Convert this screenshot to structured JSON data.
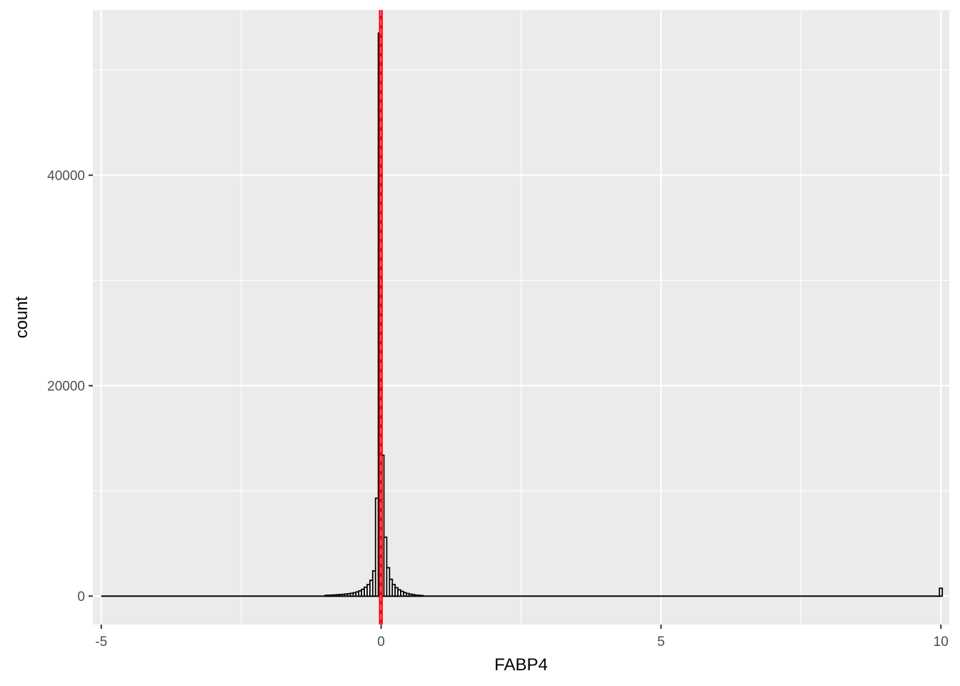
{
  "chart_data": {
    "type": "bar",
    "title": "",
    "xlabel": "FABP4",
    "ylabel": "count",
    "xlim": [
      -5.15,
      10.15
    ],
    "ylim": [
      -2700,
      55700
    ],
    "x_ticks": [
      -5,
      0,
      5,
      10
    ],
    "x_tick_labels": [
      "-5",
      "0",
      "5",
      "10"
    ],
    "y_ticks": [
      0,
      20000,
      40000
    ],
    "y_tick_labels": [
      "0",
      "20000",
      "40000"
    ],
    "x_minor": [
      -2.5,
      2.5,
      7.5
    ],
    "y_minor": [
      10000,
      30000,
      50000
    ],
    "grid": true,
    "bin_width": 0.05,
    "bars": [
      {
        "x": -0.975,
        "count": 80
      },
      {
        "x": -0.925,
        "count": 90
      },
      {
        "x": -0.875,
        "count": 100
      },
      {
        "x": -0.825,
        "count": 110
      },
      {
        "x": -0.775,
        "count": 130
      },
      {
        "x": -0.725,
        "count": 150
      },
      {
        "x": -0.675,
        "count": 170
      },
      {
        "x": -0.625,
        "count": 200
      },
      {
        "x": -0.575,
        "count": 230
      },
      {
        "x": -0.525,
        "count": 270
      },
      {
        "x": -0.475,
        "count": 320
      },
      {
        "x": -0.425,
        "count": 400
      },
      {
        "x": -0.375,
        "count": 500
      },
      {
        "x": -0.325,
        "count": 650
      },
      {
        "x": -0.275,
        "count": 850
      },
      {
        "x": -0.225,
        "count": 1100
      },
      {
        "x": -0.175,
        "count": 1500
      },
      {
        "x": -0.125,
        "count": 2400
      },
      {
        "x": -0.075,
        "count": 9300
      },
      {
        "x": -0.025,
        "count": 53500
      },
      {
        "x": 0.025,
        "count": 13400
      },
      {
        "x": 0.075,
        "count": 5600
      },
      {
        "x": 0.125,
        "count": 2700
      },
      {
        "x": 0.175,
        "count": 1600
      },
      {
        "x": 0.225,
        "count": 1100
      },
      {
        "x": 0.275,
        "count": 800
      },
      {
        "x": 0.325,
        "count": 600
      },
      {
        "x": 0.375,
        "count": 450
      },
      {
        "x": 0.425,
        "count": 330
      },
      {
        "x": 0.475,
        "count": 250
      },
      {
        "x": 0.525,
        "count": 190
      },
      {
        "x": 0.575,
        "count": 140
      },
      {
        "x": 0.625,
        "count": 100
      },
      {
        "x": 0.675,
        "count": 75
      },
      {
        "x": 0.725,
        "count": 55
      },
      {
        "x": 10.0,
        "count": 750
      }
    ],
    "vlines": [
      {
        "x": -0.02,
        "color": "#ff0000",
        "style": "solid"
      },
      {
        "x": 0.01,
        "color": "#ff0000",
        "style": "solid"
      },
      {
        "x": -0.005,
        "color": "#ff69b4",
        "style": "dashed"
      }
    ],
    "colors": {
      "panel": "#ebebeb",
      "grid": "#ffffff",
      "bar_fill": "#ffffff",
      "bar_outline": "#000000",
      "vline": "#ff0000"
    }
  }
}
